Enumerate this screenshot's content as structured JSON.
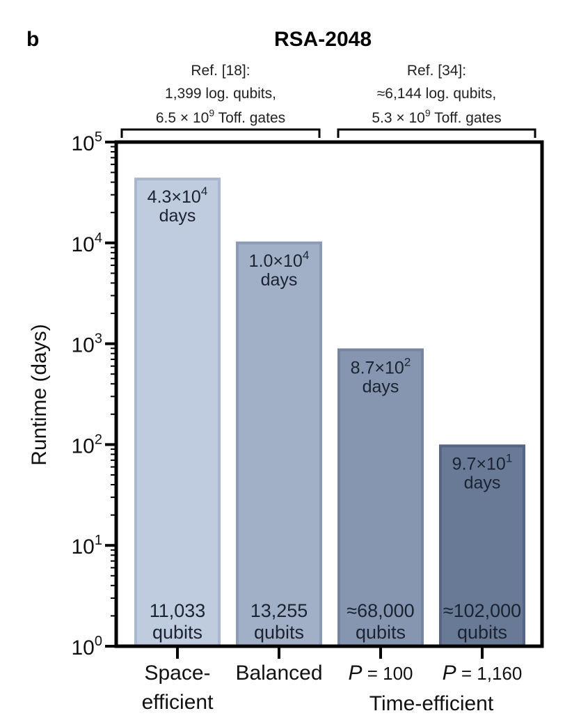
{
  "panel_label": "b",
  "chart_data": {
    "type": "bar",
    "title": "RSA-2048",
    "ylabel": "Runtime (days)",
    "xlabel": "",
    "yscale": "log",
    "ylim": [
      1,
      100000
    ],
    "yticks": [
      {
        "value": 1,
        "base": "10",
        "exp": "0"
      },
      {
        "value": 10,
        "base": "10",
        "exp": "1"
      },
      {
        "value": 100,
        "base": "10",
        "exp": "2"
      },
      {
        "value": 1000,
        "base": "10",
        "exp": "3"
      },
      {
        "value": 10000,
        "base": "10",
        "exp": "4"
      },
      {
        "value": 100000,
        "base": "10",
        "exp": "5"
      }
    ],
    "categories": [
      {
        "line1": "Space-",
        "line2": "efficient"
      },
      {
        "line1": "Balanced",
        "line2": ""
      },
      {
        "line1": "= 100",
        "italic_prefix": "P",
        "line2": ""
      },
      {
        "line1": "= 1,160",
        "italic_prefix": "P",
        "line2": ""
      }
    ],
    "group_label": "Time-efficient",
    "values": [
      43000,
      10000,
      870,
      97
    ],
    "value_labels": [
      {
        "mant": "4.3×10",
        "exp": "4",
        "unit": "days"
      },
      {
        "mant": "1.0×10",
        "exp": "4",
        "unit": "days"
      },
      {
        "mant": "8.7×10",
        "exp": "2",
        "unit": "days"
      },
      {
        "mant": "9.7×10",
        "exp": "1",
        "unit": "days"
      }
    ],
    "qubit_labels": [
      {
        "count": "11,033",
        "unit": "qubits"
      },
      {
        "count": "13,255",
        "unit": "qubits"
      },
      {
        "count": "≈68,000",
        "unit": "qubits"
      },
      {
        "count": "≈102,000",
        "unit": "qubits"
      }
    ],
    "bar_colors": [
      "#bfcbde",
      "#a2b0c7",
      "#8696b0",
      "#687a96"
    ],
    "bar_edge_colors": [
      "#a9b8cf",
      "#8c9bb4",
      "#75859f",
      "#556583"
    ],
    "brackets": [
      {
        "covers": [
          0,
          1
        ],
        "line1": "Ref. [18]:",
        "line2": "1,399 log. qubits,",
        "line3_mant": "6.5 × 10",
        "line3_exp": "9",
        "line3_tail": " Toff. gates"
      },
      {
        "covers": [
          2,
          3
        ],
        "line1": "Ref. [34]:",
        "line2": "≈6,144 log. qubits,",
        "line3_mant": "5.3 × 10",
        "line3_exp": "9",
        "line3_tail": " Toff. gates"
      }
    ]
  }
}
